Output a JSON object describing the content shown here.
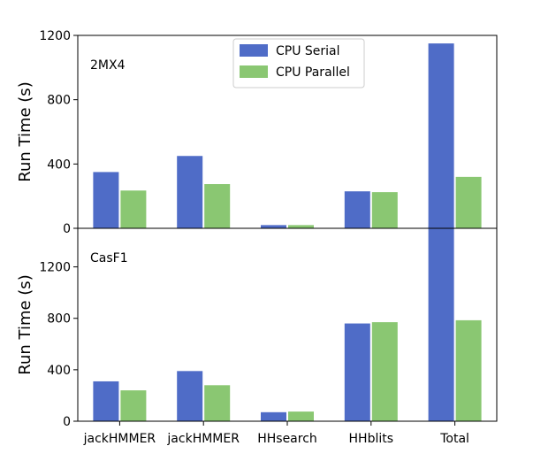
{
  "chart_data": [
    {
      "type": "bar",
      "panel_label": "2MX4",
      "ylabel": "Run Time (s)",
      "ylim": [
        0,
        1200
      ],
      "yticks": [
        0,
        400,
        800,
        1200
      ],
      "categories": [
        "jackHMMER",
        "jackHMMER",
        "HHsearch",
        "HHblits",
        "Total"
      ],
      "series": [
        {
          "name": "CPU Serial",
          "color": "#4f6cc7",
          "values": [
            350,
            450,
            20,
            230,
            1150
          ]
        },
        {
          "name": "CPU Parallel",
          "color": "#8ac772",
          "values": [
            235,
            275,
            20,
            225,
            320
          ]
        }
      ],
      "legend": "top-center",
      "grid": false,
      "show_xticklabels": false
    },
    {
      "type": "bar",
      "panel_label": "CasF1",
      "ylabel": "Run Time (s)",
      "ylim": [
        0,
        1500
      ],
      "yticks": [
        0,
        400,
        800,
        1200
      ],
      "categories": [
        "jackHMMER",
        "jackHMMER",
        "HHsearch",
        "HHblits",
        "Total"
      ],
      "series": [
        {
          "name": "CPU Serial",
          "color": "#4f6cc7",
          "values": [
            310,
            390,
            70,
            760,
            1520
          ]
        },
        {
          "name": "CPU Parallel",
          "color": "#8ac772",
          "values": [
            240,
            280,
            75,
            770,
            785
          ]
        }
      ],
      "grid": false,
      "show_xticklabels": true
    }
  ],
  "legend": {
    "items": [
      {
        "label": "CPU Serial",
        "color": "#4f6cc7"
      },
      {
        "label": "CPU Parallel",
        "color": "#8ac772"
      }
    ]
  }
}
